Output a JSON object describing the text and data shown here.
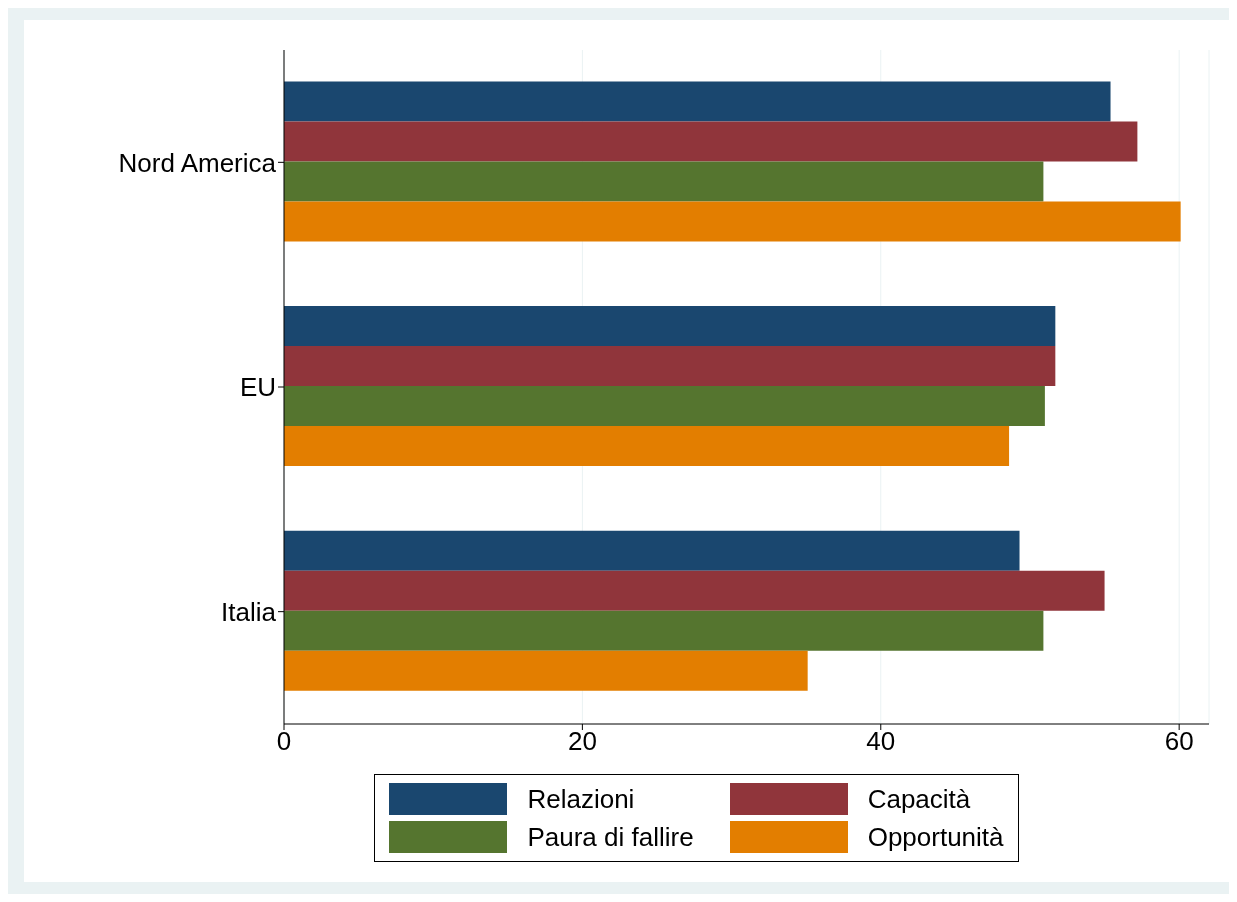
{
  "chart_data": {
    "type": "bar",
    "orientation": "horizontal",
    "categories": [
      "Nord America",
      "EU",
      "Italia"
    ],
    "series": [
      {
        "name": "Relazioni",
        "color": "#1a476f",
        "values": [
          55.4,
          51.7,
          49.3
        ]
      },
      {
        "name": "Capacità",
        "color": "#90353b",
        "values": [
          57.2,
          51.7,
          55.0
        ]
      },
      {
        "name": "Paura di fallire",
        "color": "#55752f",
        "values": [
          50.9,
          51.0,
          50.9
        ]
      },
      {
        "name": "Opportunità",
        "color": "#e37e00",
        "values": [
          60.1,
          48.6,
          35.1
        ]
      }
    ],
    "xlim": [
      0,
      62
    ],
    "xticks": [
      0,
      20,
      40,
      60
    ],
    "grid": "x",
    "legend": "bottom"
  }
}
